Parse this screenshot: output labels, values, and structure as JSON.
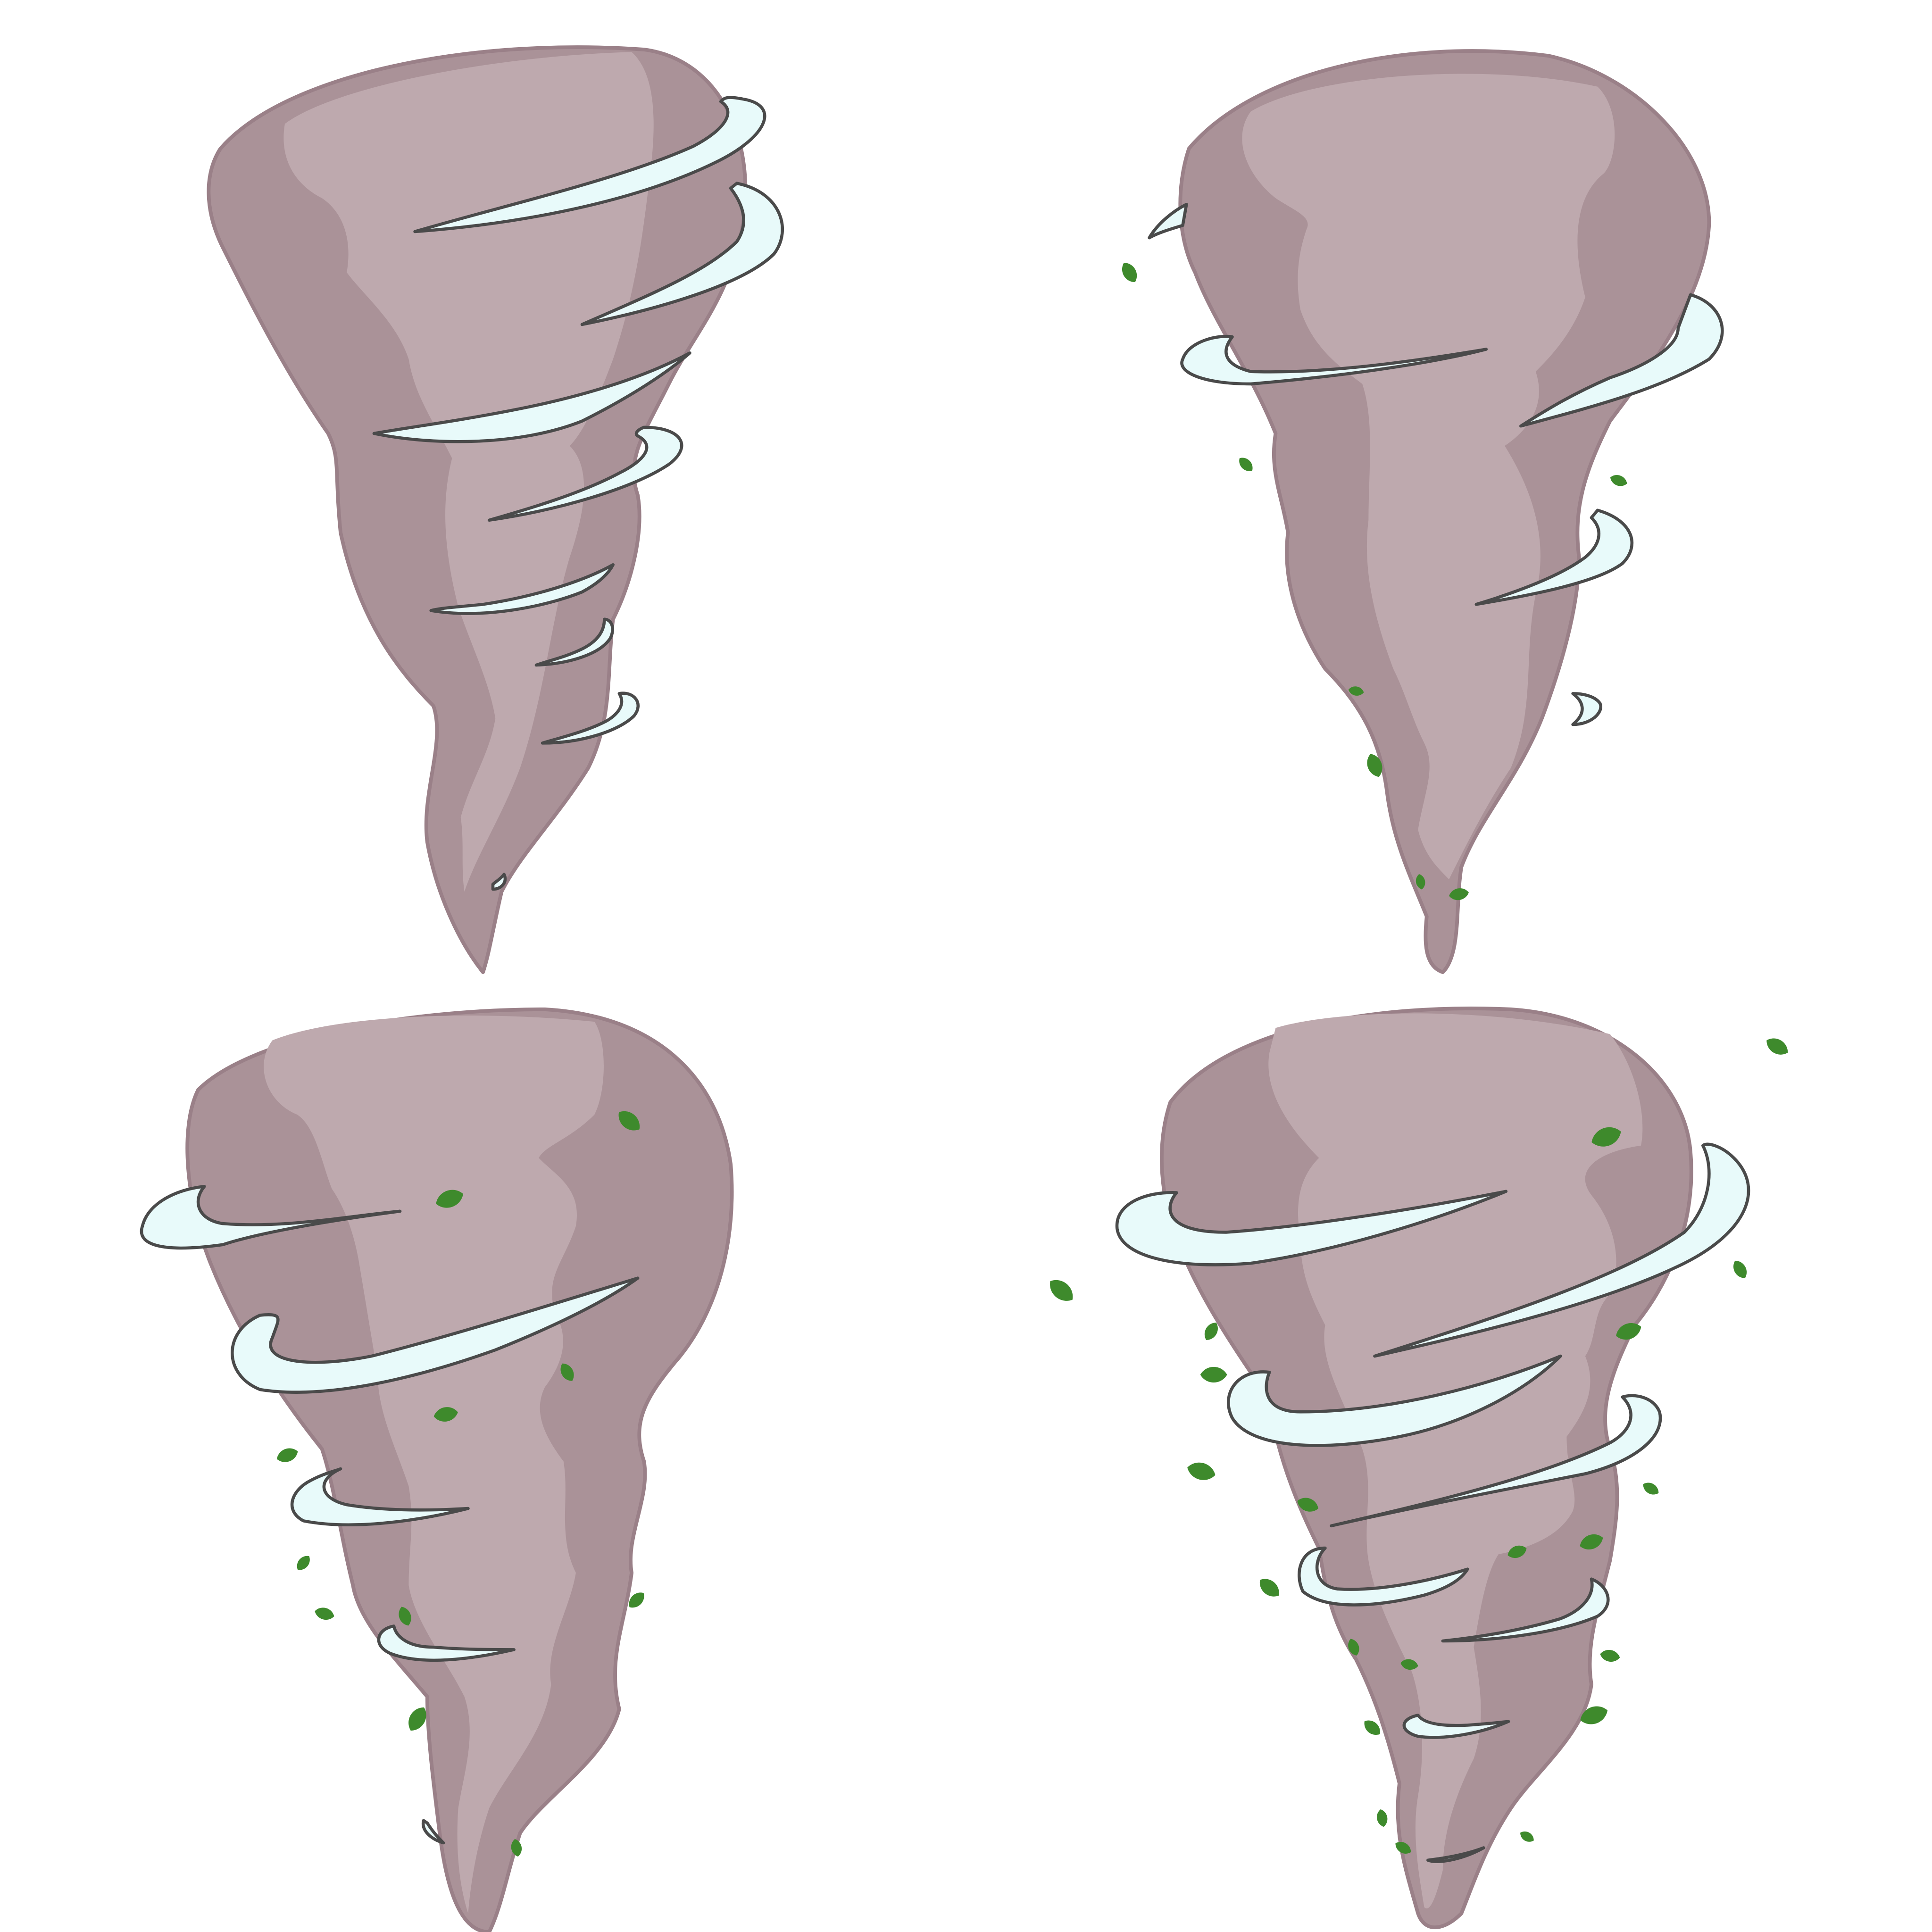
{
  "colors": {
    "background": "#ffffff",
    "funnel_dark": "#aa9298",
    "funnel_light": "#bea9ae",
    "funnel_edge": "#9a8088",
    "wind": "#e8fafa",
    "wind_outline": "#4a4a4a",
    "leaf": "#3e8a2c"
  },
  "tornadoes": [
    {
      "name": "tornado-top-left",
      "leaf_count": 0
    },
    {
      "name": "tornado-top-right",
      "leaf_count": 9
    },
    {
      "name": "tornado-bottom-left",
      "leaf_count": 15
    },
    {
      "name": "tornado-bottom-right",
      "leaf_count": 30
    }
  ]
}
